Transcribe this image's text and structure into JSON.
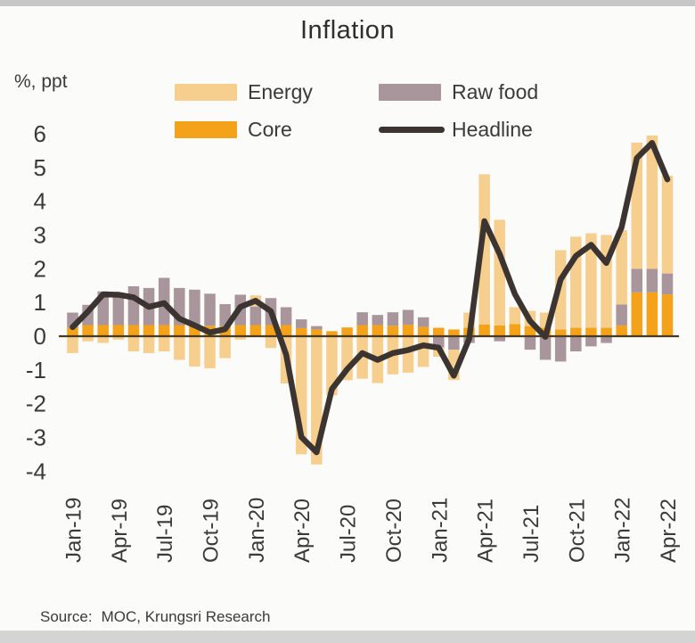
{
  "page": {
    "title": "Inflation",
    "unit_label": "%, ppt",
    "source_label": "Source:",
    "source_value": "MOC, Krungsri Research"
  },
  "chart_data": {
    "type": "bar",
    "subtype": "stacked-bars-with-line-overlay",
    "title": "Inflation",
    "ylabel": "%, ppt",
    "xlabel": "",
    "ylim": [
      -4,
      6
    ],
    "yticks": [
      6,
      5,
      4,
      3,
      2,
      1,
      0,
      -1,
      -2,
      -3,
      -4
    ],
    "grid": "off",
    "legend_position": "top",
    "text_color": "#3a3a3a",
    "axis_color": "#4a3a22",
    "x": [
      "Jan-19",
      "Feb-19",
      "Mar-19",
      "Apr-19",
      "May-19",
      "Jun-19",
      "Jul-19",
      "Aug-19",
      "Sep-19",
      "Oct-19",
      "Nov-19",
      "Dec-19",
      "Jan-20",
      "Feb-20",
      "Mar-20",
      "Apr-20",
      "May-20",
      "Jun-20",
      "Jul-20",
      "Aug-20",
      "Sep-20",
      "Oct-20",
      "Nov-20",
      "Dec-20",
      "Jan-21",
      "Feb-21",
      "Mar-21",
      "Apr-21",
      "May-21",
      "Jun-21",
      "Jul-21",
      "Aug-21",
      "Sep-21",
      "Oct-21",
      "Nov-21",
      "Dec-21",
      "Jan-22",
      "Feb-22",
      "Mar-22",
      "Apr-22"
    ],
    "x_tick_labels": [
      "Jan-19",
      "Apr-19",
      "Jul-19",
      "Oct-19",
      "Jan-20",
      "Apr-20",
      "Jul-20",
      "Oct-20",
      "Jan-21",
      "Apr-21",
      "Jul-21",
      "Oct-21",
      "Jan-22",
      "Apr-22"
    ],
    "x_tick_every": 3,
    "stack_order": [
      "Core",
      "Raw food",
      "Energy"
    ],
    "series": [
      {
        "name": "Core",
        "type": "bar",
        "color": "#f5a21b",
        "values": [
          0.25,
          0.33,
          0.33,
          0.33,
          0.33,
          0.33,
          0.33,
          0.33,
          0.33,
          0.31,
          0.3,
          0.33,
          0.33,
          0.33,
          0.33,
          0.24,
          0.2,
          0.15,
          0.26,
          0.33,
          0.33,
          0.31,
          0.34,
          0.28,
          0.25,
          0.2,
          0.25,
          0.35,
          0.32,
          0.36,
          0.3,
          0.25,
          0.2,
          0.25,
          0.25,
          0.25,
          0.32,
          1.3,
          1.3,
          1.24
        ]
      },
      {
        "name": "Raw food",
        "type": "bar",
        "color": "#a9959c",
        "values": [
          0.45,
          0.6,
          1.0,
          0.95,
          1.15,
          1.1,
          1.4,
          1.1,
          1.05,
          0.95,
          0.65,
          0.9,
          0.55,
          0.8,
          0.53,
          0.26,
          0.1,
          0.0,
          0.0,
          0.38,
          0.3,
          0.4,
          0.44,
          0.28,
          -0.34,
          -0.4,
          -0.2,
          0.0,
          -0.15,
          0.0,
          -0.4,
          -0.7,
          -0.75,
          -0.45,
          -0.3,
          -0.2,
          0.62,
          0.7,
          0.7,
          0.62
        ]
      },
      {
        "name": "Energy",
        "type": "bar",
        "color": "#f6ce8e",
        "values": [
          -0.5,
          -0.15,
          -0.2,
          -0.1,
          -0.45,
          -0.5,
          -0.45,
          -0.7,
          -0.9,
          -0.95,
          -0.65,
          -0.1,
          0.33,
          -0.35,
          -1.4,
          -3.5,
          -3.8,
          -1.75,
          -1.3,
          -1.26,
          -1.39,
          -1.13,
          -1.08,
          -0.91,
          -0.27,
          -0.9,
          0.45,
          4.45,
          3.13,
          0.5,
          0.45,
          0.45,
          2.35,
          2.7,
          2.8,
          2.75,
          2.2,
          3.74,
          3.95,
          2.9
        ]
      },
      {
        "name": "Headline",
        "type": "line",
        "color": "#3b3430",
        "values": [
          0.27,
          0.73,
          1.24,
          1.23,
          1.15,
          0.87,
          0.98,
          0.52,
          0.32,
          0.11,
          0.21,
          0.87,
          1.05,
          0.74,
          -0.54,
          -2.99,
          -3.44,
          -1.57,
          -0.98,
          -0.5,
          -0.7,
          -0.5,
          -0.41,
          -0.27,
          -0.34,
          -1.17,
          -0.08,
          3.41,
          2.44,
          1.25,
          0.45,
          -0.02,
          1.68,
          2.38,
          2.71,
          2.17,
          3.23,
          5.28,
          5.73,
          4.65
        ]
      }
    ]
  }
}
